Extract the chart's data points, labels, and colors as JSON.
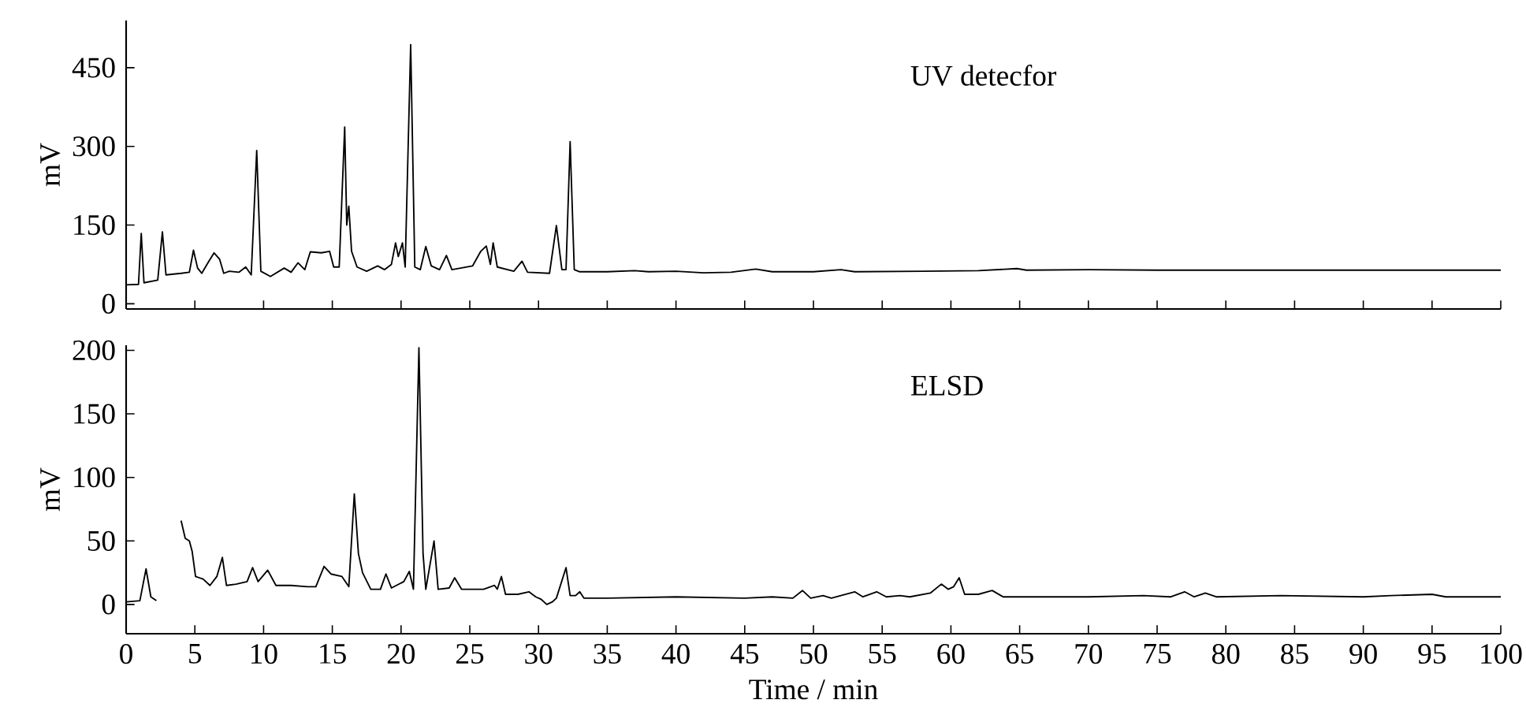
{
  "chart_data": [
    {
      "type": "line",
      "ylabel": "mV",
      "annotations": [
        "UV detecfor"
      ],
      "tick_labels": "y",
      "xlim": [
        0,
        100
      ],
      "ylim": [
        -10,
        540
      ],
      "xticks": [
        0,
        5,
        10,
        15,
        20,
        25,
        30,
        35,
        40,
        45,
        50,
        55,
        60,
        65,
        70,
        75,
        80,
        85,
        90,
        95,
        100
      ],
      "yticks": [
        0,
        150,
        300,
        450
      ],
      "series": [
        {
          "color": "#000000",
          "x": [
            0,
            0.9,
            1.1,
            1.3,
            2.3,
            2.64,
            2.9,
            4.0,
            4.6,
            4.9,
            5.2,
            5.5,
            6.0,
            6.4,
            6.8,
            7.1,
            7.5,
            8.2,
            8.7,
            9.1,
            9.5,
            9.8,
            10.5,
            11.5,
            12.0,
            12.5,
            13.0,
            13.4,
            14.2,
            14.8,
            15.1,
            15.5,
            15.9,
            16.05,
            16.2,
            16.4,
            16.8,
            17.5,
            18.3,
            18.8,
            19.3,
            19.6,
            19.8,
            20.1,
            20.3,
            20.7,
            21.0,
            21.4,
            21.8,
            22.2,
            22.8,
            23.3,
            23.7,
            25.2,
            25.8,
            26.2,
            26.5,
            26.7,
            27.0,
            28.2,
            28.8,
            29.2,
            30.8,
            31.3,
            31.7,
            32.0,
            32.3,
            32.6,
            33.0,
            35,
            37,
            38,
            40,
            42,
            44,
            45.8,
            47,
            50,
            52,
            53,
            58,
            62,
            64.8,
            65.5,
            70,
            75,
            85,
            95,
            100
          ],
          "values": [
            36,
            37,
            134,
            40,
            45,
            137,
            55,
            58,
            60,
            102,
            68,
            58,
            80,
            97,
            85,
            58,
            62,
            60,
            70,
            55,
            292,
            62,
            52,
            68,
            60,
            78,
            65,
            99,
            97,
            100,
            70,
            70,
            337,
            150,
            186,
            100,
            70,
            62,
            72,
            65,
            75,
            116,
            90,
            116,
            70,
            494,
            70,
            65,
            109,
            72,
            65,
            92,
            65,
            72,
            100,
            110,
            75,
            116,
            70,
            62,
            81,
            60,
            58,
            149,
            65,
            65,
            309,
            65,
            61,
            61,
            63,
            61,
            62,
            59,
            60,
            66,
            61,
            61,
            65,
            61,
            62,
            63,
            67,
            64,
            65,
            64,
            64,
            64,
            64
          ]
        }
      ]
    },
    {
      "type": "line",
      "ylabel": "mV",
      "xlabel": "Time / min",
      "annotations": [
        "ELSD"
      ],
      "xlim": [
        0,
        100
      ],
      "ylim": [
        -23,
        204
      ],
      "xticks": [
        0,
        5,
        10,
        15,
        20,
        25,
        30,
        35,
        40,
        45,
        50,
        55,
        60,
        65,
        70,
        75,
        80,
        85,
        90,
        95,
        100
      ],
      "yticks": [
        0,
        50,
        100,
        150,
        200
      ],
      "series": [
        {
          "color": "#000000",
          "x": [
            0,
            1.0,
            1.45,
            1.8,
            2.2,
            2.5,
            3.8,
            4.0,
            4.3,
            4.6,
            4.8,
            5.05,
            5.6,
            6.1,
            6.6,
            7.0,
            7.3,
            8.0,
            8.8,
            9.2,
            9.6,
            10.3,
            10.9,
            12,
            13.2,
            13.8,
            14.4,
            14.9,
            15.7,
            16.2,
            16.6,
            16.9,
            17.2,
            17.8,
            18.5,
            18.9,
            19.3,
            20.2,
            20.6,
            20.9,
            21.3,
            21.6,
            21.8,
            22.4,
            22.7,
            23.5,
            23.9,
            24.4,
            26,
            26.8,
            27.0,
            27.3,
            27.6,
            28.5,
            29.3,
            29.8,
            30.2,
            30.6,
            31.0,
            31.3,
            32.0,
            32.3,
            32.7,
            33.0,
            33.3,
            35,
            40,
            45,
            47,
            48.5,
            49.2,
            49.8,
            50.7,
            51.3,
            53,
            53.6,
            54.6,
            55.3,
            56.3,
            57,
            58.5,
            59.3,
            59.8,
            60.2,
            60.6,
            61.0,
            62,
            63,
            63.8,
            70,
            74,
            76,
            77,
            77.7,
            78.5,
            79.3,
            84,
            90,
            92,
            95,
            96,
            100
          ],
          "values": [
            2,
            3,
            28,
            6,
            3,
            null,
            null,
            66,
            52,
            50,
            42,
            22,
            20,
            15,
            22,
            37,
            15,
            16,
            18,
            29,
            18,
            27,
            15,
            15,
            14,
            14,
            30,
            24,
            22,
            14,
            87,
            40,
            25,
            12,
            12,
            24,
            13,
            18,
            26,
            12,
            202,
            40,
            12,
            50,
            12,
            13,
            21,
            12,
            12,
            15,
            12,
            22,
            8,
            8,
            10,
            6,
            4,
            0,
            2,
            5,
            29,
            7,
            7,
            10,
            5,
            5,
            6,
            5,
            6,
            5,
            11,
            5,
            7,
            5,
            10,
            6,
            10,
            6,
            7,
            6,
            9,
            16,
            12,
            14,
            21,
            8,
            8,
            11,
            6,
            6,
            7,
            6,
            10,
            6,
            9,
            6,
            7,
            6,
            7,
            8,
            6,
            6
          ]
        }
      ]
    }
  ]
}
